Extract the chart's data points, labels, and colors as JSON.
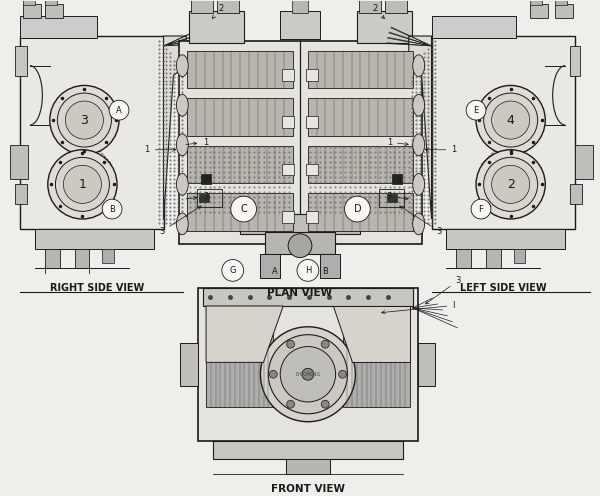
{
  "bg_color": "#f0eeea",
  "line_color": "#1a1a1a",
  "paper_color": "#f8f6f2",
  "labels": {
    "right_side": "RIGHT SIDE VIEW",
    "plan": "PLAN VIEW",
    "left_side": "LEFT SIDE VIEW",
    "front": "FRONT VIEW"
  },
  "layout": {
    "figw": 6.0,
    "figh": 4.96,
    "dpi": 100
  }
}
